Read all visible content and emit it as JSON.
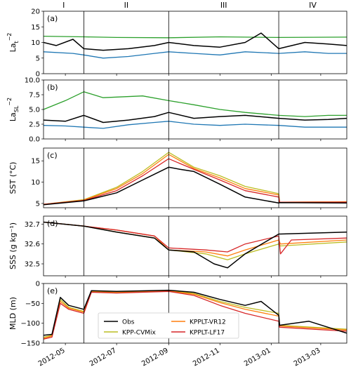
{
  "chart_data": {
    "type": "line",
    "x_axis": {
      "ticks": [
        "2012-05",
        "2012-07",
        "2012-09",
        "2012-11",
        "2013-01",
        "2013-03"
      ],
      "range": [
        "2012-04-05",
        "2013-04-01"
      ]
    },
    "periods": {
      "labels": [
        "I",
        "II",
        "III",
        "IV"
      ],
      "boundaries": [
        "2012-05-23",
        "2012-09-01",
        "2013-01-10"
      ]
    },
    "colors": {
      "Obs": "#000000",
      "KPP-CVMix": "#bcbd22",
      "KPPLT-VR12": "#ff7f0e",
      "KPPLT-LF17": "#d62728",
      "green": "#2ca02c",
      "blue": "#1f77b4",
      "grey": "#999999"
    },
    "legend": {
      "entries": [
        "Obs",
        "KPP-CVMix",
        "KPPLT-VR12",
        "KPPLT-LF17"
      ],
      "placement": "lower-center of panel (e)"
    },
    "panels": [
      {
        "label": "(a)",
        "ylabel": "La_t^-2",
        "ylabel_base": "La",
        "ylabel_sub": "t",
        "ylabel_sup": "−2",
        "ylim": [
          0,
          20
        ],
        "yticks": [
          "0",
          "5",
          "10",
          "15",
          "20"
        ],
        "series": [
          {
            "color": "green",
            "dates": [
              "2012-04-05",
              "2012-05-23",
              "2012-07-01",
              "2012-09-01",
              "2012-11-01",
              "2013-01-10",
              "2013-04-01"
            ],
            "values": [
              12,
              11.8,
              11.6,
              11.5,
              11.8,
              11.6,
              11.7
            ]
          },
          {
            "color": "black",
            "dates": [
              "2012-04-05",
              "2012-04-20",
              "2012-05-10",
              "2012-05-23",
              "2012-06-15",
              "2012-07-15",
              "2012-08-15",
              "2012-09-01",
              "2012-10-01",
              "2012-11-01",
              "2012-12-01",
              "2012-12-20",
              "2013-01-10",
              "2013-02-10",
              "2013-03-10",
              "2013-04-01"
            ],
            "values": [
              10,
              9,
              11,
              8,
              7.5,
              8,
              9,
              10,
              9,
              8.5,
              10,
              13,
              8,
              10,
              9.5,
              9
            ]
          },
          {
            "color": "blue",
            "dates": [
              "2012-04-05",
              "2012-05-10",
              "2012-05-23",
              "2012-06-15",
              "2012-07-15",
              "2012-08-15",
              "2012-09-01",
              "2012-10-01",
              "2012-11-01",
              "2012-12-01",
              "2013-01-10",
              "2013-02-10",
              "2013-03-10",
              "2013-04-01"
            ],
            "values": [
              7,
              6.5,
              6,
              5,
              5.5,
              6.5,
              7,
              6.5,
              6,
              7,
              6.5,
              7,
              6.5,
              6.5
            ]
          }
        ]
      },
      {
        "label": "(b)",
        "ylabel": "La_SL^-2",
        "ylabel_base": "La",
        "ylabel_sub": "SL",
        "ylabel_sup": "−2",
        "ylim": [
          0,
          10
        ],
        "yticks": [
          "0.0",
          "2.5",
          "5.0",
          "7.5",
          "10.0"
        ],
        "series": [
          {
            "color": "green",
            "dates": [
              "2012-04-05",
              "2012-05-01",
              "2012-05-23",
              "2012-06-15",
              "2012-08-01",
              "2012-09-01",
              "2012-10-01",
              "2012-11-01",
              "2012-12-01",
              "2013-01-10",
              "2013-02-10",
              "2013-03-10",
              "2013-04-01"
            ],
            "values": [
              5,
              6.5,
              8,
              7,
              7.3,
              6.5,
              5.8,
              5,
              4.5,
              4,
              3.8,
              4,
              4
            ]
          },
          {
            "color": "black",
            "dates": [
              "2012-04-05",
              "2012-05-01",
              "2012-05-23",
              "2012-06-15",
              "2012-07-15",
              "2012-08-15",
              "2012-09-01",
              "2012-10-01",
              "2012-11-01",
              "2012-12-01",
              "2013-01-10",
              "2013-02-10",
              "2013-03-10",
              "2013-04-01"
            ],
            "values": [
              3.2,
              3,
              4,
              2.8,
              3.2,
              3.8,
              4.5,
              3.5,
              3.8,
              4,
              3.5,
              3.2,
              3.3,
              3.5
            ]
          },
          {
            "color": "blue",
            "dates": [
              "2012-04-05",
              "2012-05-01",
              "2012-05-23",
              "2012-06-15",
              "2012-07-15",
              "2012-08-15",
              "2012-09-01",
              "2012-10-01",
              "2012-11-01",
              "2012-12-01",
              "2013-01-10",
              "2013-02-10",
              "2013-03-10",
              "2013-04-01"
            ],
            "values": [
              2.3,
              2.2,
              2,
              1.8,
              2.4,
              2.8,
              3,
              2.5,
              2.3,
              2.5,
              2.3,
              2,
              2,
              2
            ]
          }
        ]
      },
      {
        "label": "(c)",
        "ylabel": "SST (°C)",
        "ylim": [
          4,
          18
        ],
        "yticks": [
          "5",
          "10",
          "15"
        ],
        "series": [
          {
            "color": "KPP-CVMix",
            "dates": [
              "2012-04-05",
              "2012-05-23",
              "2012-07-01",
              "2012-08-01",
              "2012-09-01",
              "2012-10-01",
              "2012-11-01",
              "2012-12-01",
              "2013-01-10",
              "2013-01-11",
              "2013-04-01"
            ],
            "values": [
              4.8,
              5.9,
              8.8,
              12.5,
              17,
              13.5,
              11.5,
              9,
              7.3,
              5.3,
              5.4
            ]
          },
          {
            "color": "KPPLT-VR12",
            "dates": [
              "2012-04-05",
              "2012-05-23",
              "2012-07-01",
              "2012-08-01",
              "2012-09-01",
              "2012-10-01",
              "2012-11-01",
              "2012-12-01",
              "2013-01-10",
              "2013-01-11",
              "2013-04-01"
            ],
            "values": [
              4.8,
              5.8,
              8.5,
              12,
              16.5,
              13.2,
              11,
              8.5,
              7,
              5.3,
              5.4
            ]
          },
          {
            "color": "KPPLT-LF17",
            "dates": [
              "2012-04-05",
              "2012-05-23",
              "2012-07-01",
              "2012-08-01",
              "2012-09-01",
              "2012-10-01",
              "2012-11-01",
              "2012-12-01",
              "2013-01-10",
              "2013-01-11",
              "2013-04-01"
            ],
            "values": [
              4.8,
              5.7,
              8,
              11.5,
              15.5,
              13,
              10.5,
              8,
              6.5,
              5.3,
              5.3
            ]
          },
          {
            "color": "Obs",
            "dates": [
              "2012-04-05",
              "2012-05-23",
              "2012-07-01",
              "2012-08-01",
              "2012-09-01",
              "2012-09-15",
              "2012-10-01",
              "2012-11-01",
              "2012-12-01",
              "2013-01-10",
              "2013-01-11",
              "2013-04-01"
            ],
            "values": [
              4.7,
              5.6,
              7.5,
              10.5,
              13.5,
              13,
              12.5,
              9.5,
              6.5,
              5.1,
              5.2,
              5.1
            ]
          }
        ]
      },
      {
        "label": "(d)",
        "ylabel": "SSS (g kg⁻¹)",
        "ylim": [
          32.44,
          32.74
        ],
        "yticks": [
          "32.5",
          "32.6",
          "32.7"
        ],
        "series": [
          {
            "color": "KPP-CVMix",
            "dates": [
              "2012-04-05",
              "2012-05-23",
              "2012-07-01",
              "2012-08-15",
              "2012-09-01",
              "2012-10-15",
              "2012-11-10",
              "2012-12-01",
              "2013-01-10",
              "2013-01-12",
              "2013-04-01"
            ],
            "values": [
              32.71,
              32.69,
              32.66,
              32.63,
              32.57,
              32.55,
              32.52,
              32.55,
              32.6,
              32.59,
              32.61
            ]
          },
          {
            "color": "KPPLT-VR12",
            "dates": [
              "2012-04-05",
              "2012-05-23",
              "2012-07-01",
              "2012-08-15",
              "2012-09-01",
              "2012-10-15",
              "2012-11-10",
              "2012-12-01",
              "2013-01-10",
              "2013-01-12",
              "2013-04-01"
            ],
            "values": [
              32.71,
              32.69,
              32.67,
              32.64,
              32.57,
              32.56,
              32.54,
              32.57,
              32.62,
              32.6,
              32.62
            ]
          },
          {
            "color": "KPPLT-LF17",
            "dates": [
              "2012-04-05",
              "2012-05-23",
              "2012-07-01",
              "2012-08-15",
              "2012-09-01",
              "2012-10-15",
              "2012-11-10",
              "2012-12-01",
              "2013-01-10",
              "2013-01-12",
              "2013-01-25",
              "2013-04-01"
            ],
            "values": [
              32.71,
              32.69,
              32.67,
              32.64,
              32.58,
              32.57,
              32.56,
              32.6,
              32.64,
              32.55,
              32.62,
              32.63
            ]
          },
          {
            "color": "Obs",
            "dates": [
              "2012-04-05",
              "2012-05-23",
              "2012-07-01",
              "2012-08-15",
              "2012-09-01",
              "2012-10-01",
              "2012-10-25",
              "2012-11-10",
              "2012-12-01",
              "2013-01-10",
              "2013-01-12",
              "2013-04-01"
            ],
            "values": [
              32.71,
              32.69,
              32.66,
              32.63,
              32.57,
              32.56,
              32.5,
              32.48,
              32.55,
              32.65,
              32.65,
              32.66
            ]
          }
        ]
      },
      {
        "label": "(e)",
        "ylabel": "MLD (m)",
        "ylim": [
          -150,
          0
        ],
        "yticks": [
          "−150",
          "−100",
          "−50",
          "0"
        ],
        "series": [
          {
            "color": "KPP-CVMix",
            "dates": [
              "2012-04-05",
              "2012-04-15",
              "2012-04-25",
              "2012-05-05",
              "2012-05-23",
              "2012-06-01",
              "2012-07-01",
              "2012-09-01",
              "2012-10-01",
              "2012-11-01",
              "2012-12-01",
              "2013-01-10",
              "2013-01-11",
              "2013-04-01"
            ],
            "values": [
              -135,
              -130,
              -40,
              -60,
              -70,
              -20,
              -22,
              -18,
              -25,
              -45,
              -60,
              -75,
              -105,
              -115
            ]
          },
          {
            "color": "KPPLT-VR12",
            "dates": [
              "2012-04-05",
              "2012-04-15",
              "2012-04-25",
              "2012-05-05",
              "2012-05-23",
              "2012-06-01",
              "2012-07-01",
              "2012-09-01",
              "2012-10-01",
              "2012-11-01",
              "2012-12-01",
              "2013-01-10",
              "2013-01-11",
              "2013-04-01"
            ],
            "values": [
              -138,
              -132,
              -45,
              -62,
              -72,
              -21,
              -23,
              -19,
              -27,
              -48,
              -65,
              -82,
              -107,
              -117
            ]
          },
          {
            "color": "KPPLT-LF17",
            "dates": [
              "2012-04-05",
              "2012-04-15",
              "2012-04-25",
              "2012-05-05",
              "2012-05-23",
              "2012-06-01",
              "2012-07-01",
              "2012-09-01",
              "2012-10-01",
              "2012-11-01",
              "2012-12-01",
              "2013-01-10",
              "2013-01-11",
              "2013-04-01"
            ],
            "values": [
              -140,
              -135,
              -50,
              -65,
              -75,
              -22,
              -24,
              -20,
              -30,
              -55,
              -75,
              -95,
              -110,
              -120
            ]
          },
          {
            "color": "Obs",
            "dates": [
              "2012-04-05",
              "2012-04-15",
              "2012-04-25",
              "2012-05-05",
              "2012-05-23",
              "2012-06-01",
              "2012-07-01",
              "2012-09-01",
              "2012-10-01",
              "2012-11-01",
              "2012-12-01",
              "2012-12-20",
              "2013-01-10",
              "2013-01-11",
              "2013-02-15",
              "2013-04-01"
            ],
            "values": [
              -130,
              -128,
              -35,
              -55,
              -65,
              -18,
              -20,
              -17,
              -22,
              -40,
              -55,
              -45,
              -80,
              -105,
              -95,
              -125
            ]
          }
        ]
      }
    ]
  }
}
